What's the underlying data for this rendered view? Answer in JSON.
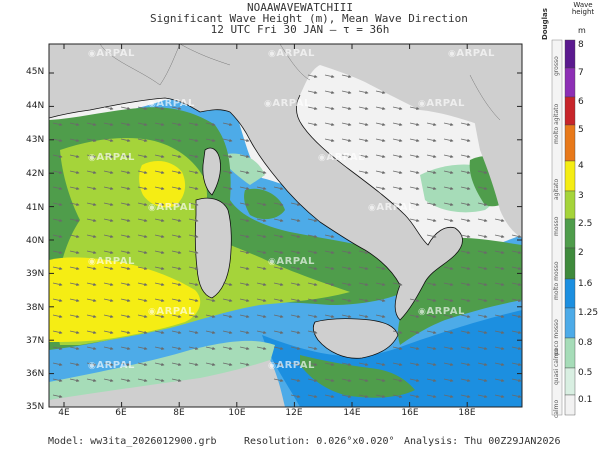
{
  "header": {
    "line1": "NOAAWAVEWATCHIII",
    "line2": "Significant Wave Height (m), Mean Wave Direction",
    "line3": "12 UTC Fri 30 JAN  —  τ = 36h"
  },
  "watermark": "ARPAL",
  "map": {
    "lat_labels": [
      "45N",
      "44N",
      "43N",
      "42N",
      "41N",
      "40N",
      "39N",
      "38N",
      "37N",
      "36N",
      "35N"
    ],
    "lon_labels": [
      "4E",
      "6E",
      "8E",
      "10E",
      "12E",
      "14E",
      "16E",
      "18E"
    ],
    "land_color": "#cfcfcf",
    "sea_colors": {
      "calm": "#f2f2f2",
      "light_green": "#a6dcb8",
      "light_blue": "#4dabe8",
      "blue": "#1c8fe0",
      "green": "#4f9d4b",
      "yellow_green": "#a5d43a",
      "yellow": "#f5ed14"
    }
  },
  "legend": {
    "title_line1": "Wave",
    "title_line2": "height",
    "unit": "m",
    "scale_name": "Douglas",
    "values": [
      "8",
      "7",
      "6",
      "5",
      "4",
      "3",
      "2.5",
      "2",
      "1.6",
      "1.25",
      "0.8",
      "0.5",
      "0.1"
    ],
    "words": [
      "grosso",
      "molto agitato",
      "agitato",
      "mosso",
      "molto mosso",
      "poco mosso",
      "quasi calmo",
      "calmo"
    ]
  },
  "footer": {
    "model": "Model:  ww3ita_2026012900.grb",
    "resolution": "Resolution: 0.026°x0.020°",
    "analysis": "Analysis: Thu  00Z29JAN2026"
  }
}
